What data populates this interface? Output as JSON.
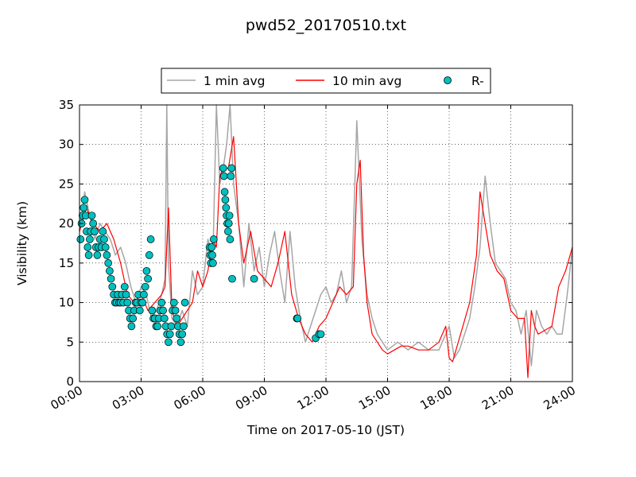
{
  "chart_data": {
    "type": "line",
    "title": "pwd52_20170510.txt",
    "xlabel": "Time on 2017-05-10 (JST)",
    "ylabel": "Visibility (km)",
    "xlim": [
      "00:00",
      "24:00"
    ],
    "ylim": [
      0,
      35
    ],
    "xticks": [
      "00:00",
      "03:00",
      "06:00",
      "09:00",
      "12:00",
      "15:00",
      "18:00",
      "21:00",
      "24:00"
    ],
    "yticks": [
      "0",
      "5",
      "10",
      "15",
      "20",
      "25",
      "30",
      "35"
    ],
    "grid": true,
    "legend_position": "top-center, above plot",
    "series": [
      {
        "name": "1 min avg",
        "type": "line",
        "color": "#a6a6a6",
        "x": [
          "00:00",
          "00:15",
          "00:30",
          "00:45",
          "01:00",
          "01:15",
          "01:30",
          "01:45",
          "02:00",
          "02:15",
          "02:30",
          "02:45",
          "03:00",
          "03:15",
          "03:30",
          "03:45",
          "04:00",
          "04:10",
          "04:15",
          "04:20",
          "04:30",
          "04:45",
          "05:00",
          "05:15",
          "05:30",
          "05:45",
          "06:00",
          "06:15",
          "06:30",
          "06:40",
          "06:50",
          "07:00",
          "07:10",
          "07:20",
          "07:30",
          "07:45",
          "08:00",
          "08:15",
          "08:30",
          "08:45",
          "09:00",
          "09:15",
          "09:30",
          "09:45",
          "10:00",
          "10:15",
          "10:30",
          "10:45",
          "11:00",
          "11:15",
          "11:30",
          "11:45",
          "12:00",
          "12:15",
          "12:30",
          "12:45",
          "13:00",
          "13:15",
          "13:30",
          "13:45",
          "14:00",
          "14:15",
          "14:30",
          "14:45",
          "15:00",
          "15:30",
          "16:00",
          "16:30",
          "17:00",
          "17:30",
          "18:00",
          "18:15",
          "18:30",
          "18:45",
          "19:00",
          "19:15",
          "19:30",
          "19:45",
          "20:00",
          "20:15",
          "20:30",
          "20:45",
          "21:00",
          "21:15",
          "21:30",
          "21:45",
          "22:00",
          "22:15",
          "22:30",
          "22:45",
          "23:00",
          "23:15",
          "23:30",
          "23:45",
          "24:00"
        ],
        "y": [
          19,
          24,
          21,
          18,
          20,
          19,
          18,
          16,
          17,
          15,
          12,
          10,
          12,
          11,
          8,
          9,
          11,
          13,
          35,
          15,
          8,
          7,
          9,
          7,
          14,
          11,
          12,
          18,
          16,
          35,
          25,
          27,
          30,
          35,
          25,
          20,
          12,
          20,
          14,
          17,
          12,
          16,
          19,
          14,
          10,
          19,
          12,
          8,
          5,
          7,
          9,
          11,
          12,
          10,
          11,
          14,
          10,
          12,
          33,
          18,
          11,
          8,
          6,
          5,
          4,
          5,
          4,
          5,
          4,
          4,
          7,
          3,
          4,
          6,
          8,
          12,
          17,
          26,
          20,
          15,
          14,
          13,
          10,
          9,
          6,
          9,
          2,
          9,
          7,
          6,
          7,
          6,
          6,
          11,
          17
        ]
      },
      {
        "name": "10 min avg",
        "type": "line",
        "color": "#ff0000",
        "x": [
          "00:00",
          "00:20",
          "00:40",
          "01:00",
          "01:20",
          "01:40",
          "02:00",
          "02:20",
          "02:40",
          "03:00",
          "03:20",
          "03:40",
          "04:00",
          "04:10",
          "04:20",
          "04:30",
          "04:45",
          "05:00",
          "05:15",
          "05:30",
          "05:45",
          "06:00",
          "06:15",
          "06:30",
          "06:40",
          "06:50",
          "07:00",
          "07:15",
          "07:30",
          "07:45",
          "08:00",
          "08:20",
          "08:40",
          "09:00",
          "09:20",
          "09:40",
          "10:00",
          "10:20",
          "10:40",
          "11:00",
          "11:20",
          "11:40",
          "12:00",
          "12:20",
          "12:40",
          "13:00",
          "13:20",
          "13:30",
          "13:40",
          "13:50",
          "14:00",
          "14:15",
          "14:30",
          "14:45",
          "15:00",
          "15:20",
          "15:40",
          "16:00",
          "16:30",
          "17:00",
          "17:30",
          "17:50",
          "18:00",
          "18:10",
          "18:20",
          "18:40",
          "19:00",
          "19:20",
          "19:30",
          "19:45",
          "20:00",
          "20:20",
          "20:40",
          "21:00",
          "21:20",
          "21:40",
          "21:50",
          "22:00",
          "22:10",
          "22:20",
          "22:40",
          "23:00",
          "23:20",
          "23:40",
          "24:00"
        ],
        "y": [
          19,
          22,
          20,
          19,
          20,
          18,
          15,
          11,
          10,
          11,
          9,
          10,
          11,
          12,
          22,
          9,
          7,
          8,
          9,
          10,
          14,
          12,
          14,
          18,
          17,
          26,
          27,
          27,
          31,
          20,
          15,
          19,
          14,
          13,
          12,
          15,
          19,
          11,
          8,
          6,
          5,
          7,
          8,
          10,
          12,
          11,
          12,
          25,
          28,
          16,
          10,
          6,
          5,
          4,
          3.5,
          4,
          4.5,
          4.5,
          4,
          4,
          5,
          7,
          3,
          2.5,
          4,
          7,
          10,
          16,
          24,
          20,
          16,
          14,
          13,
          9,
          8,
          8,
          0.5,
          9,
          7,
          6,
          6.5,
          7,
          12,
          14,
          17
        ]
      },
      {
        "name": "R-",
        "type": "scatter",
        "color": "#00c0c0",
        "x": [
          "00:03",
          "00:06",
          "00:09",
          "00:12",
          "00:15",
          "00:18",
          "00:21",
          "00:24",
          "00:27",
          "00:30",
          "00:33",
          "00:36",
          "00:40",
          "00:44",
          "00:48",
          "00:52",
          "00:56",
          "01:00",
          "01:04",
          "01:08",
          "01:12",
          "01:16",
          "01:20",
          "01:24",
          "01:28",
          "01:32",
          "01:36",
          "01:40",
          "01:44",
          "01:48",
          "01:52",
          "01:56",
          "02:00",
          "02:04",
          "02:08",
          "02:12",
          "02:16",
          "02:20",
          "02:24",
          "02:28",
          "02:32",
          "02:36",
          "02:40",
          "02:44",
          "02:48",
          "02:52",
          "02:56",
          "03:00",
          "03:04",
          "03:08",
          "03:12",
          "03:16",
          "03:20",
          "03:24",
          "03:28",
          "03:32",
          "03:36",
          "03:40",
          "03:44",
          "03:48",
          "03:52",
          "03:56",
          "04:00",
          "04:04",
          "04:08",
          "04:12",
          "04:16",
          "04:20",
          "04:24",
          "04:28",
          "04:32",
          "04:36",
          "04:40",
          "04:44",
          "04:48",
          "04:52",
          "04:56",
          "05:00",
          "05:04",
          "05:08",
          "06:20",
          "06:22",
          "06:24",
          "06:26",
          "06:28",
          "06:30",
          "06:32",
          "07:00",
          "07:02",
          "07:04",
          "07:06",
          "07:08",
          "07:10",
          "07:12",
          "07:14",
          "07:16",
          "07:18",
          "07:20",
          "07:22",
          "07:24",
          "07:26",
          "08:30",
          "10:35",
          "10:37",
          "11:30",
          "11:40",
          "11:45"
        ],
        "y": [
          18,
          20,
          21,
          22,
          23,
          21,
          19,
          17,
          16,
          18,
          19,
          21,
          20,
          19,
          17,
          16,
          17,
          18,
          17,
          19,
          18,
          17,
          16,
          15,
          14,
          13,
          12,
          11,
          10,
          10,
          11,
          10,
          10,
          11,
          10,
          12,
          11,
          10,
          9,
          8,
          7,
          8,
          9,
          10,
          10,
          11,
          9,
          10,
          10,
          11,
          12,
          14,
          13,
          16,
          18,
          9,
          8,
          8,
          7,
          7,
          8,
          9,
          10,
          9,
          8,
          7,
          6,
          5,
          6,
          7,
          9,
          10,
          9,
          8,
          7,
          6,
          5,
          6,
          7,
          10,
          17,
          16,
          15,
          17,
          16,
          15,
          18,
          27,
          26,
          24,
          23,
          22,
          21,
          20,
          19,
          20,
          21,
          18,
          26,
          27,
          13,
          13,
          8,
          8,
          5.5,
          6,
          6
        ]
      }
    ]
  }
}
